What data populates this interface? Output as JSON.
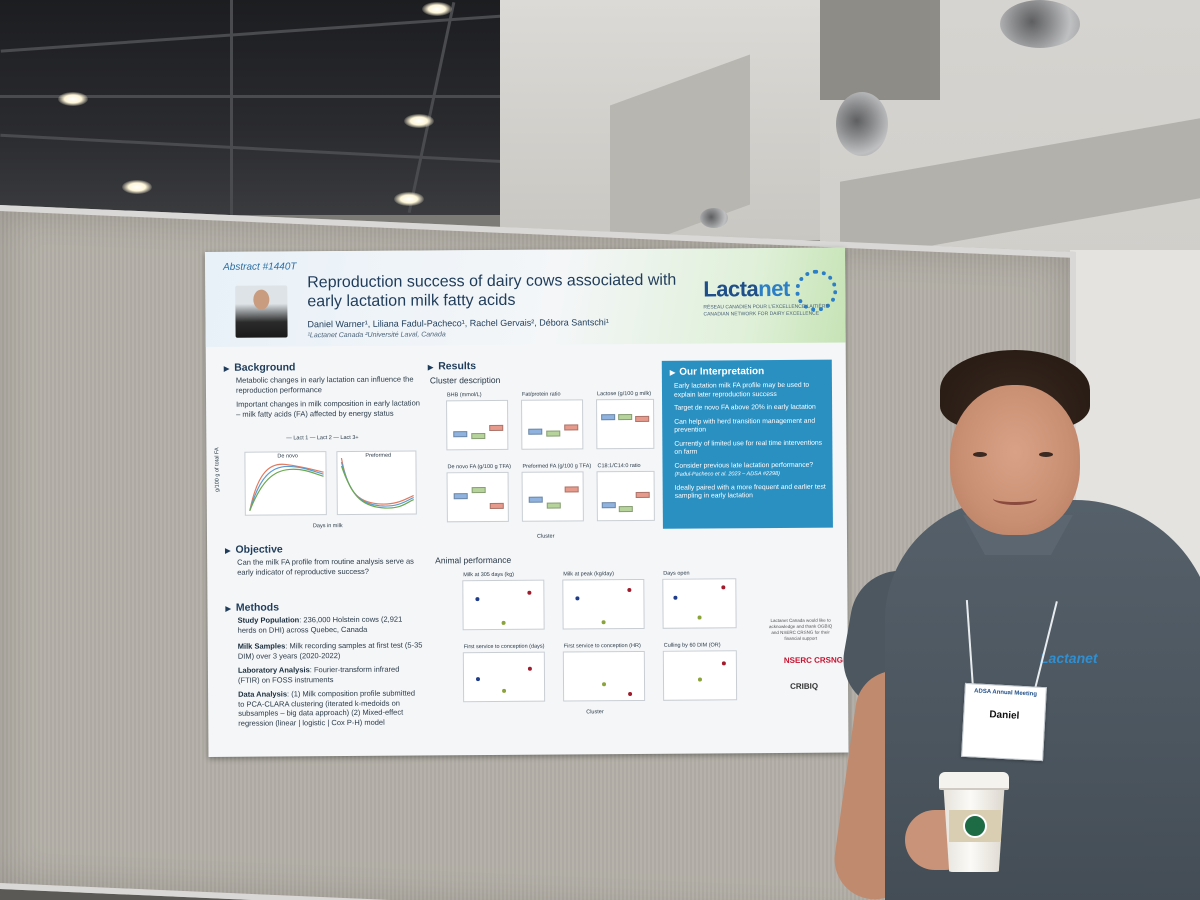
{
  "poster": {
    "abstract": "Abstract #1440T",
    "title": "Reproduction success of dairy cows associated with early lactation milk fatty acids",
    "authors": "Daniel Warner¹, Liliana Fadul-Pacheco¹, Rachel Gervais², Débora Santschi¹",
    "affiliations": "¹Lactanet Canada        ²Université Laval, Canada",
    "logo": {
      "name_a": "Lacta",
      "name_b": "net",
      "subtitle": "RÉSEAU CANADIEN POUR L'EXCELLENCE LAITIÈRE CANADIAN NETWORK FOR DAIRY EXCELLENCE"
    },
    "background": {
      "heading": "Background",
      "p1": "Metabolic changes in early lactation can influence the reproduction performance",
      "p2": "Important changes in milk composition in early lactation – milk fatty acids (FA) affected by energy status",
      "legend": "— Lact 1   — Lact 2   — Lact 3+",
      "plot_left_title": "De novo",
      "plot_right_title": "Preformed",
      "ylabel": "g/100 g of total FA",
      "xlabel": "Days in milk"
    },
    "objective": {
      "heading": "Objective",
      "text": "Can the milk FA profile from routine analysis serve as early indicator of reproductive success?"
    },
    "methods": {
      "heading": "Methods",
      "study_label": "Study Population",
      "study_text": ": 236,000 Holstein cows (2,921 herds on DHI) across Quebec, Canada",
      "samples_label": "Milk Samples",
      "samples_text": ": Milk recording samples at first test (5-35 DIM) over 3 years (2020-2022)",
      "lab_label": "Laboratory Analysis",
      "lab_text": ": Fourier-transform infrared (FTIR) on FOSS instruments",
      "data_label": "Data Analysis",
      "data_text": ": (1) Milk composition profile submitted to PCA-CLARA clustering (iterated k-medoids on subsamples – big data approach) (2) Mixed-effect regression (linear | logistic | Cox P-H) model"
    },
    "results": {
      "heading": "Results",
      "cluster_heading": "Cluster description",
      "cluster_plots": [
        "BHB (mmol/L)",
        "Fat/protein ratio",
        "Lactose (g/100 g milk)",
        "De novo FA (g/100 g TFA)",
        "Preformed FA (g/100 g TFA)",
        "C18:1/C14:0 ratio"
      ],
      "cluster_axis": "Cluster",
      "animal_heading": "Animal performance",
      "animal_plots": [
        "Milk at 305 days (kg)",
        "Milk at peak (kg/day)",
        "Days open",
        "First service to conception (days)",
        "First service to conception (HR)",
        "Culling by 60 DIM (OR)"
      ],
      "animal_axis": "Cluster"
    },
    "interpretation": {
      "heading": "Our Interpretation",
      "items": [
        "Early lactation milk FA profile may be used to explain later reproduction success",
        "Target de novo FA above 20% in early lactation",
        "Can help with herd transition management and prevention",
        "Currently of limited use for real time interventions on farm",
        "Consider previous late lactation performance?",
        "Ideally paired with a more frequent and earlier test sampling in early lactation"
      ],
      "citation": "(Fadul-Pacheco et al. 2023 – ADSA #2298)"
    },
    "ack": "Lactanet Canada would like to acknowledge and thank OGBIQ and NSERC CRSNG for their financial support",
    "sponsors": [
      "NSERC CRSNG",
      "CRIBIQ"
    ]
  },
  "badge": {
    "meeting": "ADSA Annual Meeting",
    "name": "Daniel"
  },
  "shirt_logo": "Lactanet",
  "colors": {
    "poster_blue": "#2a8fc1",
    "title_navy": "#1f3c5a",
    "board": "#b4b0a8",
    "shirt": "#4b555e"
  }
}
